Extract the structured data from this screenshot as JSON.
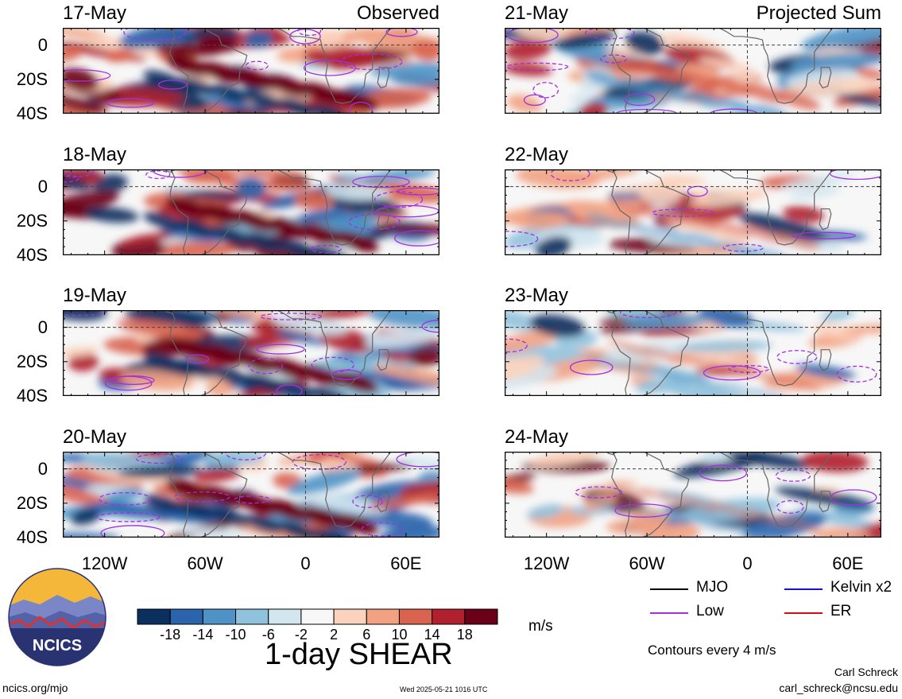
{
  "chart_data": {
    "type": "heatmap",
    "variable_title": "1-day SHEAR",
    "units": "m/s",
    "column_titles": [
      "Observed",
      "Projected Sum"
    ],
    "x_ticks": [
      "120W",
      "60W",
      "0",
      "60E"
    ],
    "y_ticks": [
      "0",
      "20S",
      "40S"
    ],
    "x_range_deg": [
      -145,
      80
    ],
    "y_range_deg": [
      -40,
      10
    ],
    "colorbar": {
      "ticks": [
        "-18",
        "-14",
        "-10",
        "-6",
        "-2",
        "2",
        "6",
        "10",
        "14",
        "18"
      ],
      "colors": [
        "#0b2f5e",
        "#2a64ac",
        "#4f93c6",
        "#91c2dd",
        "#d2e6f0",
        "#f7f7f7",
        "#fbd2bd",
        "#f2a283",
        "#d9634f",
        "#b0202e",
        "#6b0019"
      ]
    },
    "panels": [
      {
        "date": "17-May",
        "column": "Observed",
        "strength": 1.0
      },
      {
        "date": "18-May",
        "column": "Observed",
        "strength": 1.0
      },
      {
        "date": "19-May",
        "column": "Observed",
        "strength": 1.0
      },
      {
        "date": "20-May",
        "column": "Observed",
        "strength": 1.0
      },
      {
        "date": "21-May",
        "column": "Projected Sum",
        "strength": 0.8
      },
      {
        "date": "22-May",
        "column": "Projected Sum",
        "strength": 0.55
      },
      {
        "date": "23-May",
        "column": "Projected Sum",
        "strength": 0.45
      },
      {
        "date": "24-May",
        "column": "Projected Sum",
        "strength": 0.4
      }
    ],
    "legend": [
      {
        "label": "MJO",
        "color": "#000000"
      },
      {
        "label": "Kelvin x2",
        "color": "#1414c8"
      },
      {
        "label": "Low",
        "color": "#a030e0"
      },
      {
        "label": "ER",
        "color": "#d01010"
      }
    ],
    "contour_note": "Contours every 4 m/s"
  },
  "branding": {
    "logo_text": "NCICS",
    "url": "ncics.org/mjo",
    "timestamp": "Wed 2025-05-21 1016 UTC",
    "author": "Carl Schreck",
    "email": "carl_schreck@ncsu.edu"
  }
}
